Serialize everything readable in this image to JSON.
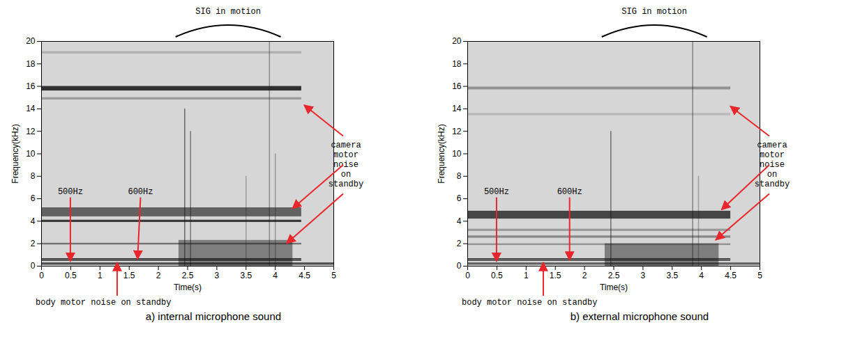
{
  "chart_data": [
    {
      "type": "spectrogram",
      "caption": "a) internal microphone sound",
      "xlabel": "Time(s)",
      "ylabel": "Frequency(kHz)",
      "xlim": [
        0,
        5
      ],
      "xticks": [
        0,
        0.5,
        1,
        1.5,
        2,
        2.5,
        3,
        3.5,
        4,
        4.5,
        5
      ],
      "ylim": [
        0,
        20
      ],
      "yticks": [
        0,
        2,
        4,
        6,
        8,
        10,
        12,
        14,
        16,
        18,
        20
      ],
      "bands": [
        {
          "x0": 0,
          "x1": 4.45,
          "y0": 15.6,
          "y1": 16.0,
          "level": 0.85
        },
        {
          "x0": 0,
          "x1": 4.45,
          "y0": 14.8,
          "y1": 15.0,
          "level": 0.3
        },
        {
          "x0": 0,
          "x1": 4.45,
          "y0": 18.9,
          "y1": 19.1,
          "level": 0.2
        },
        {
          "x0": 0,
          "x1": 4.45,
          "y0": 4.4,
          "y1": 5.2,
          "level": 0.6
        },
        {
          "x0": 0,
          "x1": 4.45,
          "y0": 3.9,
          "y1": 4.1,
          "level": 0.8
        },
        {
          "x0": 0,
          "x1": 4.45,
          "y0": 1.9,
          "y1": 2.05,
          "level": 0.5
        },
        {
          "x0": 0,
          "x1": 4.45,
          "y0": 0.45,
          "y1": 0.55,
          "level": 0.85
        },
        {
          "x0": 0,
          "x1": 4.45,
          "y0": 0.58,
          "y1": 0.68,
          "level": 0.85
        },
        {
          "x0": 0,
          "x1": 5,
          "y0": 0.1,
          "y1": 0.3,
          "level": 0.7
        },
        {
          "x0": 2.35,
          "x1": 4.3,
          "y0": 0,
          "y1": 2.3,
          "level": 0.45
        }
      ],
      "transients": [
        {
          "x": 2.45,
          "y0": 0,
          "y1": 14,
          "level": 0.6
        },
        {
          "x": 2.55,
          "y0": 0,
          "y1": 12,
          "level": 0.5
        },
        {
          "x": 3.5,
          "y0": 0,
          "y1": 8,
          "level": 0.3
        },
        {
          "x": 3.9,
          "y0": 0,
          "y1": 20,
          "level": 0.4
        },
        {
          "x": 4.0,
          "y0": 0,
          "y1": 10,
          "level": 0.35
        }
      ],
      "labels": [
        {
          "text": "500Hz",
          "x": 0.5,
          "y": 6.4,
          "target": [
            0.5,
            0.4
          ]
        },
        {
          "text": "600Hz",
          "x": 1.7,
          "y": 6.4,
          "target": [
            1.65,
            0.6
          ]
        }
      ],
      "span_note": {
        "text": "SIG in motion",
        "x0": 2.3,
        "x1": 4.1
      },
      "camera_note": {
        "text": "camera motor noise on standby",
        "targets": [
          [
            4.5,
            14.3
          ],
          [
            4.3,
            5.1
          ],
          [
            4.2,
            2.0
          ]
        ]
      },
      "body_note": {
        "text": "body motor noise on standby",
        "target": [
          1.3,
          0.3
        ]
      }
    },
    {
      "type": "spectrogram",
      "caption": "b) external microphone sound",
      "xlabel": "Time(s)",
      "ylabel": "Frequency(kHz)",
      "xlim": [
        0,
        5
      ],
      "xticks": [
        0,
        0.5,
        1,
        1.5,
        2,
        2.5,
        3,
        3.5,
        4,
        4.5,
        5
      ],
      "ylim": [
        0,
        20
      ],
      "yticks": [
        0,
        2,
        4,
        6,
        8,
        10,
        12,
        14,
        16,
        18,
        20
      ],
      "bands": [
        {
          "x0": 0,
          "x1": 4.5,
          "y0": 15.7,
          "y1": 15.95,
          "level": 0.35
        },
        {
          "x0": 0,
          "x1": 4.5,
          "y0": 13.4,
          "y1": 13.6,
          "level": 0.15
        },
        {
          "x0": 0,
          "x1": 4.5,
          "y0": 4.2,
          "y1": 4.9,
          "level": 0.75
        },
        {
          "x0": 0,
          "x1": 4.5,
          "y0": 3.1,
          "y1": 3.3,
          "level": 0.3
        },
        {
          "x0": 0,
          "x1": 4.5,
          "y0": 2.5,
          "y1": 2.7,
          "level": 0.4
        },
        {
          "x0": 0,
          "x1": 4.5,
          "y0": 1.85,
          "y1": 2.0,
          "level": 0.35
        },
        {
          "x0": 0,
          "x1": 4.5,
          "y0": 0.45,
          "y1": 0.55,
          "level": 0.8
        },
        {
          "x0": 0,
          "x1": 4.5,
          "y0": 0.58,
          "y1": 0.68,
          "level": 0.8
        },
        {
          "x0": 0,
          "x1": 5,
          "y0": 0.1,
          "y1": 0.3,
          "level": 0.6
        },
        {
          "x0": 2.35,
          "x1": 4.3,
          "y0": 0,
          "y1": 2.0,
          "level": 0.45
        }
      ],
      "transients": [
        {
          "x": 2.45,
          "y0": 0,
          "y1": 12,
          "level": 0.55
        },
        {
          "x": 3.85,
          "y0": 0,
          "y1": 20,
          "level": 0.45
        },
        {
          "x": 3.95,
          "y0": 0,
          "y1": 8,
          "level": 0.3
        }
      ],
      "labels": [
        {
          "text": "500Hz",
          "x": 0.5,
          "y": 6.4,
          "target": [
            0.5,
            0.4
          ]
        },
        {
          "text": "600Hz",
          "x": 1.75,
          "y": 6.4,
          "target": [
            1.75,
            0.5
          ]
        }
      ],
      "span_note": {
        "text": "SIG in motion",
        "x0": 2.3,
        "x1": 4.1
      },
      "camera_note": {
        "text": "camera motor noise on standby",
        "targets": [
          [
            4.5,
            14.2
          ],
          [
            4.35,
            5.0
          ],
          [
            4.25,
            2.3
          ]
        ]
      },
      "body_note": {
        "text": "body motor noise on standby",
        "target": [
          1.3,
          0.3
        ]
      }
    }
  ]
}
